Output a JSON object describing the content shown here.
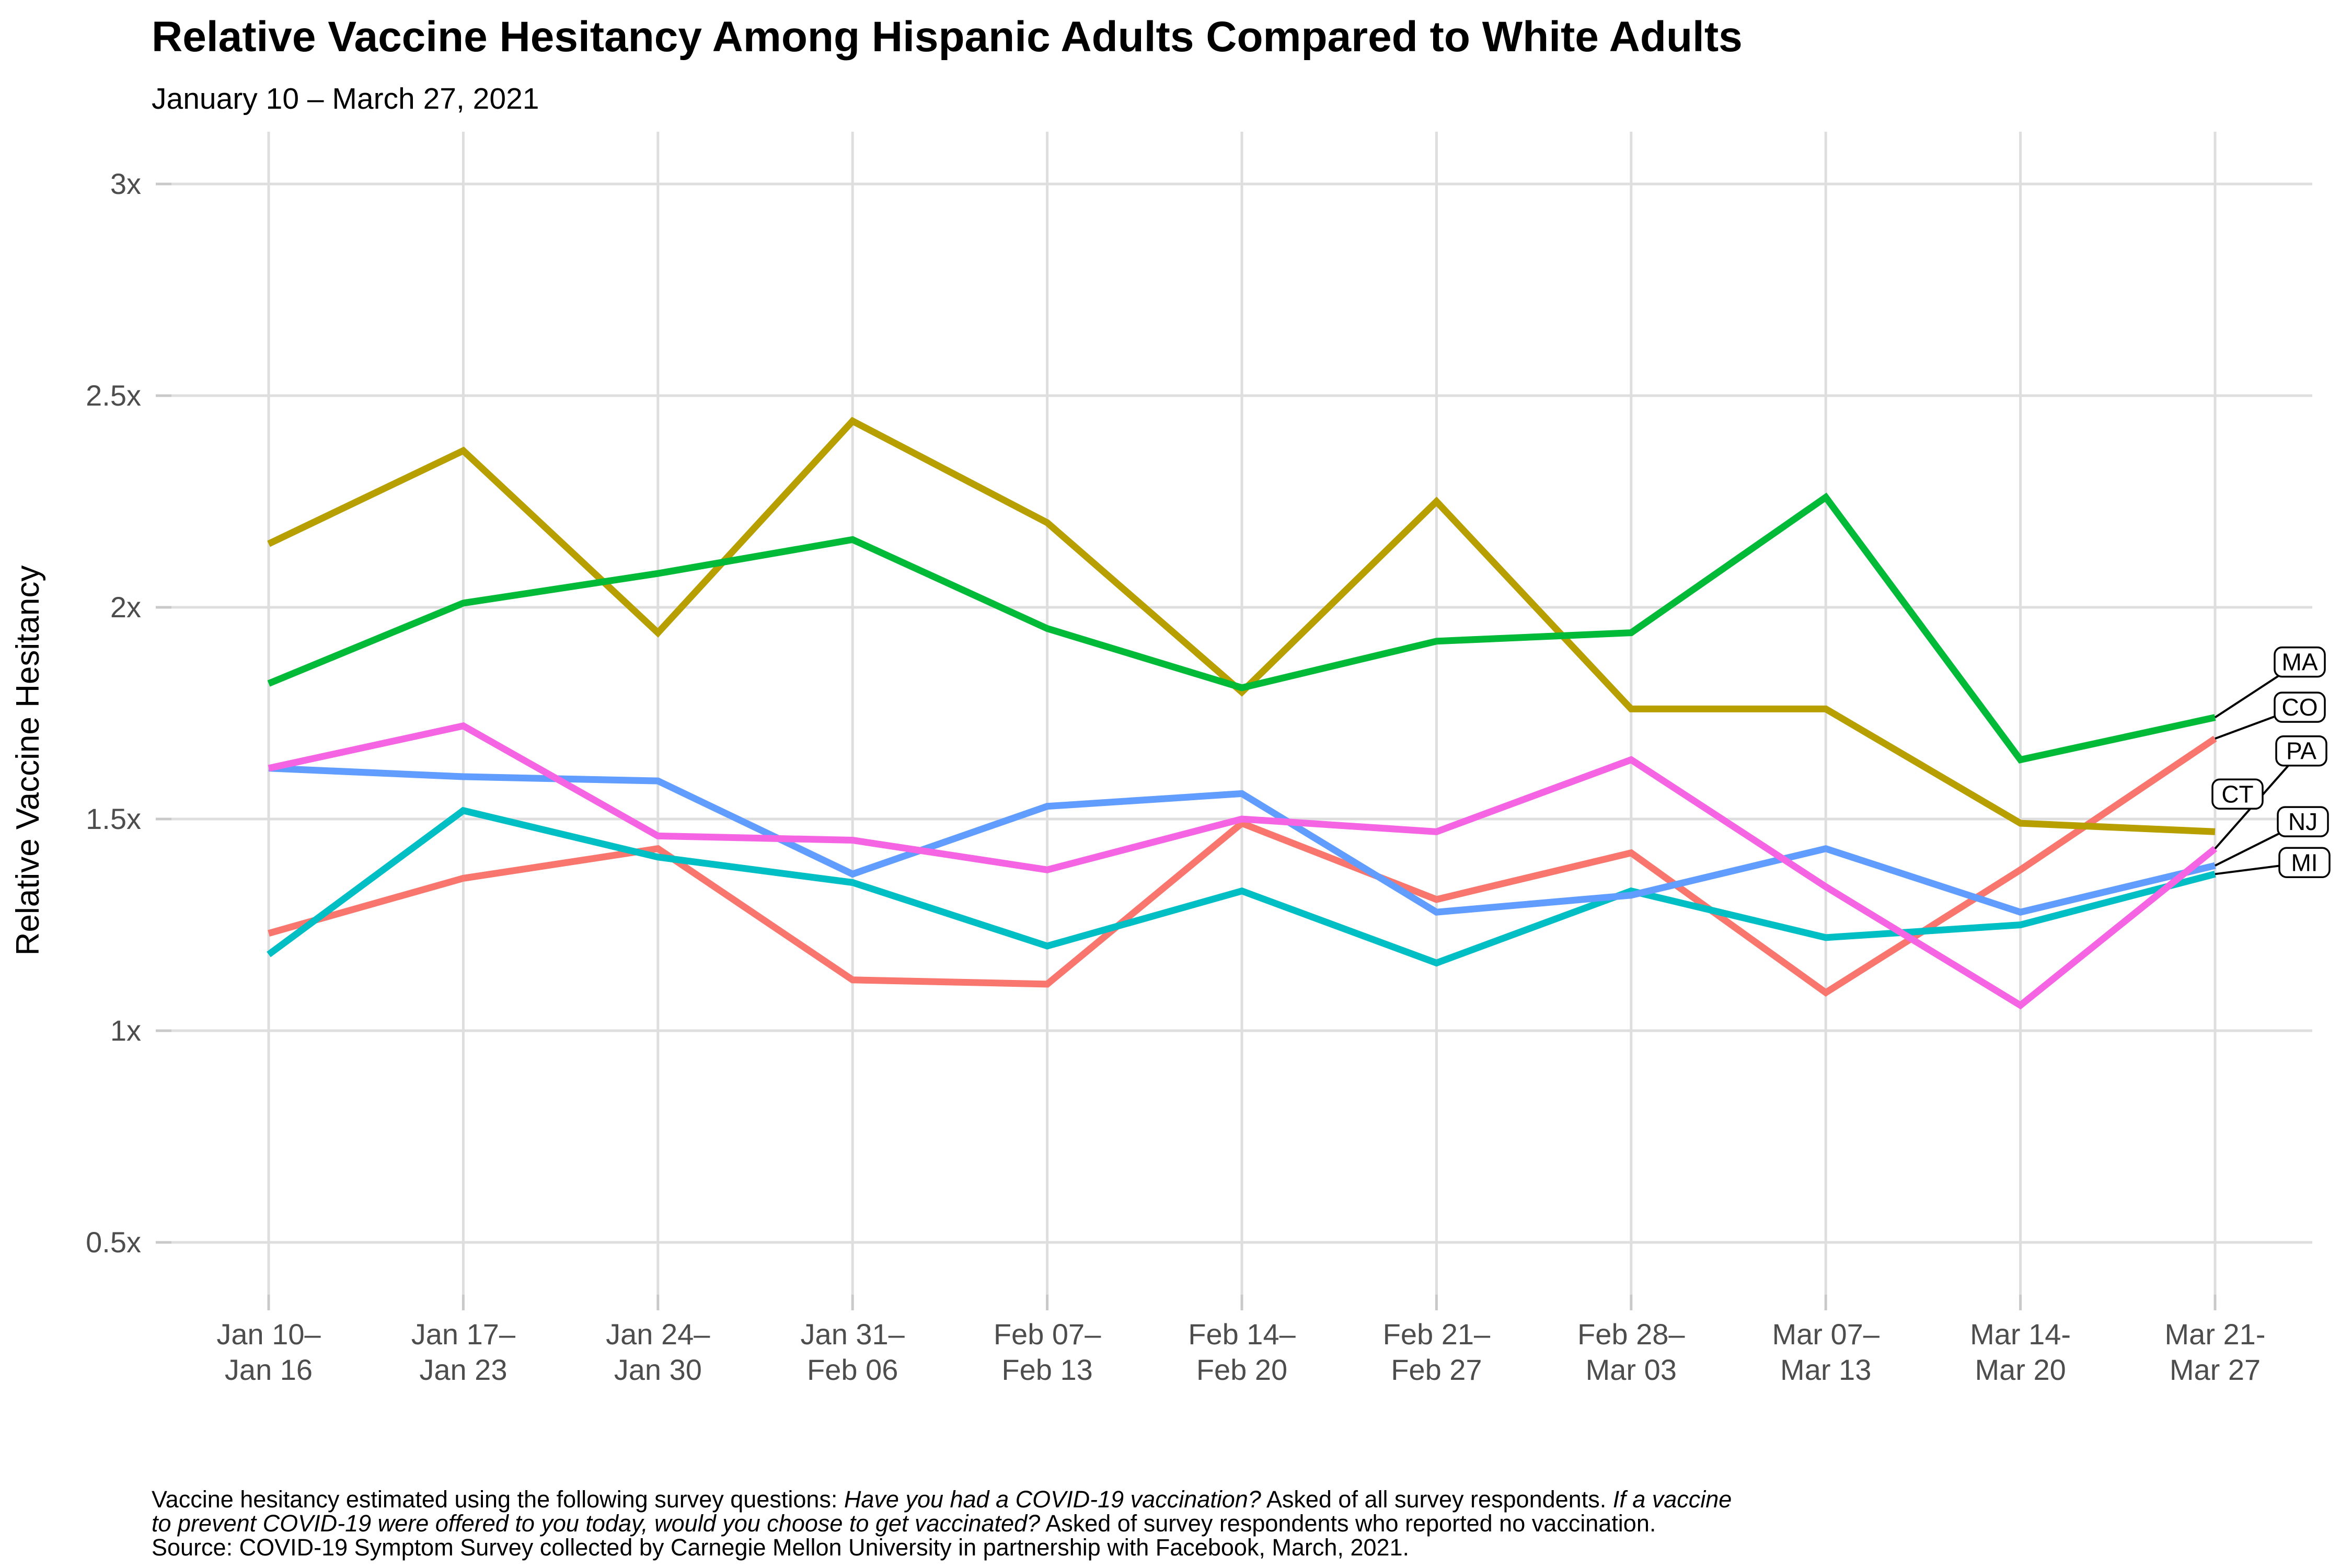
{
  "header": {
    "title": "Relative Vaccine Hesitancy Among Hispanic Adults Compared to White Adults",
    "subtitle": "January 10 – March 27, 2021"
  },
  "chart_data": {
    "type": "line",
    "title": "Relative Vaccine Hesitancy Among Hispanic Adults Compared to White Adults",
    "subtitle": "January 10 – March 27, 2021",
    "xlabel": "",
    "ylabel": "Relative Vaccine Hesitancy",
    "grid": true,
    "legend_position": "right-end-labels",
    "ylim": [
      0.37,
      3.12
    ],
    "yticks": {
      "values": [
        0.5,
        1,
        1.5,
        2,
        2.5,
        3
      ],
      "labels": [
        "0.5x",
        "1x",
        "1.5x",
        "2x",
        "2.5x",
        "3x"
      ]
    },
    "categories": [
      "Jan 10–Jan 16",
      "Jan 17–Jan 23",
      "Jan 24–Jan 30",
      "Jan 31–Feb 06",
      "Feb 07–Feb 13",
      "Feb 14–Feb 20",
      "Feb 21–Feb 27",
      "Feb 28–Mar 03",
      "Mar 07–Mar 13",
      "Mar 14-Mar 20",
      "Mar 21-Mar 27"
    ],
    "xtick_lines": [
      [
        "Jan 10–",
        "Jan 16"
      ],
      [
        "Jan 17–",
        "Jan 23"
      ],
      [
        "Jan 24–",
        "Jan 30"
      ],
      [
        "Jan 31–",
        "Feb 06"
      ],
      [
        "Feb 07–",
        "Feb 13"
      ],
      [
        "Feb 14–",
        "Feb 20"
      ],
      [
        "Feb 21–",
        "Feb 27"
      ],
      [
        "Feb 28–",
        "Mar 03"
      ],
      [
        "Mar 07–",
        "Mar 13"
      ],
      [
        "Mar 14-",
        "Mar 20"
      ],
      [
        "Mar 21-",
        "Mar 27"
      ]
    ],
    "series": [
      {
        "name": "CO",
        "color": "#F8766D",
        "values": [
          1.23,
          1.36,
          1.43,
          1.12,
          1.11,
          1.49,
          1.31,
          1.42,
          1.09,
          1.38,
          1.69
        ]
      },
      {
        "name": "CT",
        "color": "#B79F00",
        "values": [
          2.15,
          2.37,
          1.94,
          2.44,
          2.2,
          1.8,
          2.25,
          1.76,
          1.76,
          1.49,
          1.47
        ]
      },
      {
        "name": "MA",
        "color": "#00BA38",
        "values": [
          1.82,
          2.01,
          2.08,
          2.16,
          1.95,
          1.81,
          1.92,
          1.94,
          2.26,
          1.64,
          1.74
        ]
      },
      {
        "name": "MI",
        "color": "#00BFC4",
        "values": [
          1.18,
          1.52,
          1.41,
          1.35,
          1.2,
          1.33,
          1.16,
          1.33,
          1.22,
          1.25,
          1.37
        ]
      },
      {
        "name": "NJ",
        "color": "#619CFF",
        "values": [
          1.62,
          1.6,
          1.59,
          1.37,
          1.53,
          1.56,
          1.28,
          1.32,
          1.43,
          1.28,
          1.39
        ]
      },
      {
        "name": "PA",
        "color": "#F564E3",
        "values": [
          1.62,
          1.72,
          1.46,
          1.45,
          1.38,
          1.5,
          1.47,
          1.64,
          1.34,
          1.06,
          1.43
        ]
      }
    ]
  },
  "footnote": {
    "lines": [
      [
        {
          "text": "Vaccine hesitancy estimated using the following survey questions: ",
          "italic": false
        },
        {
          "text": "Have you had a COVID-19 vaccination?",
          "italic": true
        },
        {
          "text": " Asked of all survey respondents. ",
          "italic": false
        },
        {
          "text": "If a vaccine",
          "italic": true
        }
      ],
      [
        {
          "text": "to prevent COVID-19 were offered to you today, would you choose to get vaccinated?",
          "italic": true
        },
        {
          "text": " Asked of survey respondents who reported no vaccination.",
          "italic": false
        }
      ],
      [
        {
          "text": "Source: COVID-19 Symptom Survey collected by Carnegie Mellon University in partnership with Facebook, March, 2021.",
          "italic": false
        }
      ]
    ]
  },
  "colors": {
    "background": "#FFFFFF",
    "grid": "#DEDEDE",
    "tick": "#C9C9C9",
    "axis_text": "#4D4D4D",
    "axis_title": "#000000",
    "leader": "#000000",
    "label_box_fill": "#FFFFFF",
    "label_box_border": "#000000"
  }
}
